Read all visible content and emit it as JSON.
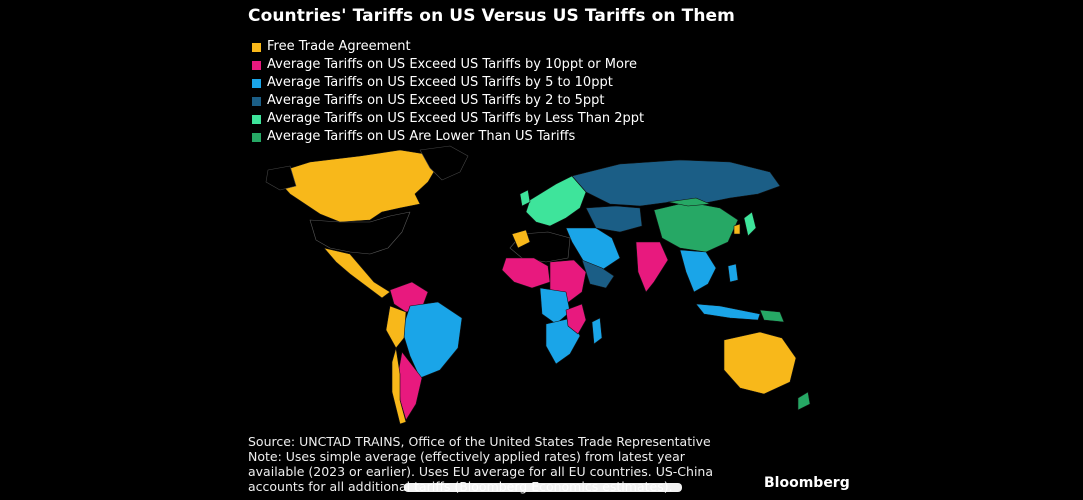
{
  "title": "Countries' Tariffs on US Versus US Tariffs on Them",
  "legend": [
    {
      "label": "Free Trade Agreement",
      "color": "#F8B81A"
    },
    {
      "label": "Average Tariffs on US Exceed US Tariffs by 10ppt or More",
      "color": "#E8197E"
    },
    {
      "label": "Average Tariffs on US Exceed US Tariffs by 5 to 10ppt",
      "color": "#1AA5E8"
    },
    {
      "label": "Average Tariffs on US Exceed US Tariffs by 2 to 5ppt",
      "color": "#1B5E86"
    },
    {
      "label": "Average Tariffs on US Exceed US Tariffs by Less Than 2ppt",
      "color": "#3EE49B"
    },
    {
      "label": "Average Tariffs on US Are Lower Than US Tariffs",
      "color": "#26A865"
    }
  ],
  "footer": {
    "line1": "Source: UNCTAD TRAINS, Office of the United States Trade Representative",
    "line2": "Note: Uses simple average (effectively applied rates) from latest year",
    "line3": "available (2023 or earlier). Uses EU average for all EU countries. US-China",
    "line4": "accounts for all additional tariffs (Bloomberg Economics estimates)."
  },
  "brand": "Bloomberg"
}
